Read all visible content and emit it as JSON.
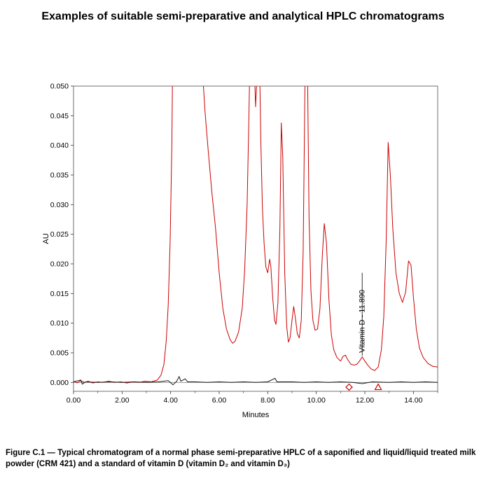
{
  "title": "Examples of suitable semi-preparative and analytical HPLC chromatograms",
  "caption": "Figure C.1 — Typical chromatogram of a normal phase semi-preparative HPLC of a saponified and liquid/liquid treated milk powder (CRM 421) and a standard of vitamin D (vitamin D₂ and vitamin D₃)",
  "chart_data": {
    "type": "line",
    "title": "",
    "xlabel": "Minutes",
    "ylabel": "AU",
    "xlim": [
      0,
      15
    ],
    "ylim": [
      -0.0015,
      0.05
    ],
    "grid": false,
    "legend": null,
    "frame_color": "#4d4d4d",
    "zero_line_color": "#8c8c8c",
    "x_ticks": {
      "values": [
        0,
        2,
        4,
        6,
        8,
        10,
        12,
        14
      ],
      "labels": [
        "0.00",
        "2.00",
        "4.00",
        "6.00",
        "8.00",
        "10.00",
        "12.00",
        "14.00"
      ],
      "minor_values": [
        1,
        3,
        5,
        7,
        9,
        11,
        13,
        15
      ]
    },
    "y_ticks": {
      "values": [
        0,
        0.005,
        0.01,
        0.015,
        0.02,
        0.025,
        0.03,
        0.035,
        0.04,
        0.045,
        0.05
      ],
      "labels": [
        "0.000",
        "0.005",
        "0.010",
        "0.015",
        "0.020",
        "0.025",
        "0.030",
        "0.035",
        "0.040",
        "0.045",
        "0.050"
      ]
    },
    "annotation": {
      "label": "Vitamin D - 11.890",
      "x": 11.89,
      "line_y1": 0.0045,
      "line_y2": 0.0185,
      "text_y": 0.005
    },
    "markers": [
      {
        "shape": "diamond",
        "x": 11.35,
        "y": -0.0008,
        "color": "#cc0000"
      },
      {
        "shape": "triangle",
        "x": 12.55,
        "y": -0.0008,
        "color": "#cc0000"
      }
    ],
    "series": [
      {
        "name": "sample trace (red)",
        "color": "#cc0000",
        "points": [
          [
            0,
            0.0002
          ],
          [
            0.15,
            -0.0001
          ],
          [
            0.3,
            0.0003
          ],
          [
            0.45,
            0
          ],
          [
            0.6,
            0.0002
          ],
          [
            0.8,
            -0.0001
          ],
          [
            1,
            0.0001
          ],
          [
            1.2,
            0
          ],
          [
            1.45,
            0.0002
          ],
          [
            1.7,
            0
          ],
          [
            1.95,
            0.0001
          ],
          [
            2.2,
            -0.0001
          ],
          [
            2.45,
            0.0001
          ],
          [
            2.7,
            0
          ],
          [
            2.95,
            0.0002
          ],
          [
            3.2,
            0.0001
          ],
          [
            3.45,
            0.0004
          ],
          [
            3.6,
            0.0012
          ],
          [
            3.72,
            0.003
          ],
          [
            3.82,
            0.007
          ],
          [
            3.9,
            0.013
          ],
          [
            3.98,
            0.024
          ],
          [
            4.05,
            0.04
          ],
          [
            4.12,
            0.07
          ],
          [
            4.3,
            0.12
          ],
          [
            4.7,
            0.14
          ],
          [
            5,
            0.12
          ],
          [
            5.2,
            0.08
          ],
          [
            5.32,
            0.052
          ],
          [
            5.42,
            0.0455
          ],
          [
            5.55,
            0.039
          ],
          [
            5.7,
            0.032
          ],
          [
            5.85,
            0.026
          ],
          [
            6,
            0.0185
          ],
          [
            6.15,
            0.0125
          ],
          [
            6.3,
            0.009
          ],
          [
            6.45,
            0.0072
          ],
          [
            6.55,
            0.0066
          ],
          [
            6.65,
            0.0069
          ],
          [
            6.8,
            0.0085
          ],
          [
            6.95,
            0.0125
          ],
          [
            7.05,
            0.019
          ],
          [
            7.15,
            0.03
          ],
          [
            7.22,
            0.044
          ],
          [
            7.28,
            0.058
          ],
          [
            7.38,
            0.066
          ],
          [
            7.44,
            0.054
          ],
          [
            7.5,
            0.0465
          ],
          [
            7.56,
            0.052
          ],
          [
            7.62,
            0.062
          ],
          [
            7.68,
            0.05
          ],
          [
            7.72,
            0.04
          ],
          [
            7.78,
            0.0295
          ],
          [
            7.85,
            0.0235
          ],
          [
            7.92,
            0.0195
          ],
          [
            8,
            0.0185
          ],
          [
            8.08,
            0.0208
          ],
          [
            8.13,
            0.0195
          ],
          [
            8.2,
            0.0145
          ],
          [
            8.28,
            0.0105
          ],
          [
            8.34,
            0.0098
          ],
          [
            8.42,
            0.0135
          ],
          [
            8.5,
            0.026
          ],
          [
            8.56,
            0.0438
          ],
          [
            8.62,
            0.038
          ],
          [
            8.7,
            0.0185
          ],
          [
            8.78,
            0.0095
          ],
          [
            8.85,
            0.0068
          ],
          [
            8.92,
            0.0075
          ],
          [
            9,
            0.0105
          ],
          [
            9.07,
            0.0128
          ],
          [
            9.14,
            0.0108
          ],
          [
            9.22,
            0.0082
          ],
          [
            9.3,
            0.0075
          ],
          [
            9.38,
            0.0105
          ],
          [
            9.46,
            0.022
          ],
          [
            9.52,
            0.045
          ],
          [
            9.58,
            0.068
          ],
          [
            9.64,
            0.052
          ],
          [
            9.7,
            0.028
          ],
          [
            9.78,
            0.0155
          ],
          [
            9.86,
            0.0105
          ],
          [
            9.95,
            0.0088
          ],
          [
            10.05,
            0.009
          ],
          [
            10.15,
            0.0125
          ],
          [
            10.25,
            0.0215
          ],
          [
            10.33,
            0.0268
          ],
          [
            10.42,
            0.0235
          ],
          [
            10.52,
            0.014
          ],
          [
            10.62,
            0.008
          ],
          [
            10.72,
            0.0055
          ],
          [
            10.85,
            0.0042
          ],
          [
            11,
            0.0036
          ],
          [
            11.1,
            0.0044
          ],
          [
            11.2,
            0.0046
          ],
          [
            11.3,
            0.0038
          ],
          [
            11.42,
            0.0031
          ],
          [
            11.55,
            0.0029
          ],
          [
            11.68,
            0.0031
          ],
          [
            11.78,
            0.0036
          ],
          [
            11.89,
            0.0043
          ],
          [
            12,
            0.0036
          ],
          [
            12.12,
            0.0029
          ],
          [
            12.25,
            0.0023
          ],
          [
            12.4,
            0.002
          ],
          [
            12.55,
            0.0026
          ],
          [
            12.68,
            0.0055
          ],
          [
            12.78,
            0.011
          ],
          [
            12.88,
            0.024
          ],
          [
            12.96,
            0.0405
          ],
          [
            13.05,
            0.035
          ],
          [
            13.15,
            0.026
          ],
          [
            13.28,
            0.0185
          ],
          [
            13.42,
            0.015
          ],
          [
            13.55,
            0.0135
          ],
          [
            13.68,
            0.0152
          ],
          [
            13.8,
            0.0205
          ],
          [
            13.9,
            0.0198
          ],
          [
            14,
            0.0145
          ],
          [
            14.12,
            0.009
          ],
          [
            14.25,
            0.0058
          ],
          [
            14.4,
            0.0042
          ],
          [
            14.6,
            0.0032
          ],
          [
            14.8,
            0.0027
          ],
          [
            15,
            0.0026
          ]
        ]
      },
      {
        "name": "baseline trace (black)",
        "color": "#1a1a1a",
        "points": [
          [
            0,
            0.0001
          ],
          [
            0.3,
            0.0004
          ],
          [
            0.36,
            -0.0003
          ],
          [
            0.5,
            0.0001
          ],
          [
            1,
            0
          ],
          [
            1.5,
            0.0001
          ],
          [
            2,
            0
          ],
          [
            2.5,
            0.0001
          ],
          [
            3,
            0
          ],
          [
            3.5,
            0.0001
          ],
          [
            3.9,
            0.0003
          ],
          [
            4.1,
            -0.0004
          ],
          [
            4.25,
            0.0002
          ],
          [
            4.35,
            0.001
          ],
          [
            4.42,
            0.0002
          ],
          [
            4.6,
            0.0006
          ],
          [
            4.7,
            0.0001
          ],
          [
            5,
            0.0001
          ],
          [
            5.5,
            0
          ],
          [
            6,
            0.0001
          ],
          [
            6.5,
            0
          ],
          [
            7,
            0.0001
          ],
          [
            7.5,
            0
          ],
          [
            8,
            0.0001
          ],
          [
            8.3,
            0.0007
          ],
          [
            8.38,
            0.0001
          ],
          [
            9,
            0.0001
          ],
          [
            9.5,
            0
          ],
          [
            10,
            0.0001
          ],
          [
            10.5,
            0
          ],
          [
            11,
            0.0001
          ],
          [
            11.5,
            0
          ],
          [
            11.9,
            -0.0002
          ],
          [
            12.3,
            0.0001
          ],
          [
            13,
            0
          ],
          [
            13.5,
            0.0001
          ],
          [
            14,
            0
          ],
          [
            14.5,
            0.0001
          ],
          [
            15,
            0
          ]
        ]
      }
    ]
  }
}
